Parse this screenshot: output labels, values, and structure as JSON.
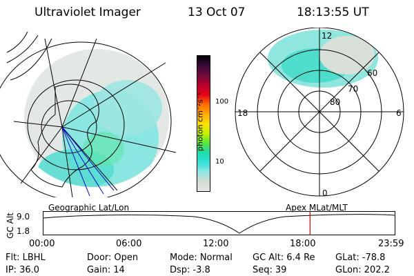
{
  "header": {
    "instrument": "Ultraviolet Imager",
    "date": "13 Oct 07",
    "time": "18:13:55 UT"
  },
  "colorbar": {
    "units": "photon cm⁻²s⁻¹",
    "ticks": [
      "100",
      "10"
    ],
    "colors": [
      "#000000",
      "#3a0a3a",
      "#6e0a3a",
      "#b5002a",
      "#e6001a",
      "#ff6a00",
      "#ffa800",
      "#ffe000",
      "#c6f000",
      "#5ee63a",
      "#1edcaa",
      "#30e0d8",
      "#8ee6e6",
      "#d2dcd2",
      "#e6e6e6"
    ]
  },
  "polar": {
    "mlt_labels": {
      "top": "12",
      "left": "18",
      "right": "6",
      "bottom": "0"
    },
    "lat_labels": [
      "60",
      "70",
      "80"
    ]
  },
  "panels": {
    "left_label": "Geographic Lat/Lon",
    "right_label": "Apex MLat/MLT"
  },
  "altitude": {
    "axis_label": "GC Alt",
    "ticks": [
      "9.0",
      "1.8"
    ],
    "time_ticks": [
      "00:00",
      "06:00",
      "12:00",
      "18:00",
      "23:59"
    ],
    "current_time_fraction": 0.759,
    "marker_color": "#cc0000"
  },
  "info": {
    "flt_label": "Flt:",
    "flt_value": "LBHL",
    "ip_label": "IP:",
    "ip_value": "36.0",
    "door_label": "Door:",
    "door_value": "Open",
    "gain_label": "Gain:",
    "gain_value": "14",
    "mode_label": "Mode:",
    "mode_value": "Normal",
    "dsp_label": "Dsp:",
    "dsp_value": "-3.8",
    "gcalt_label": "GC Alt:",
    "gcalt_value": "6.4 Re",
    "seq_label": "Seq:",
    "seq_value": "39",
    "glat_label": "GLat:",
    "glat_value": "-78.8",
    "glon_label": "GLon:",
    "glon_value": "202.2"
  }
}
